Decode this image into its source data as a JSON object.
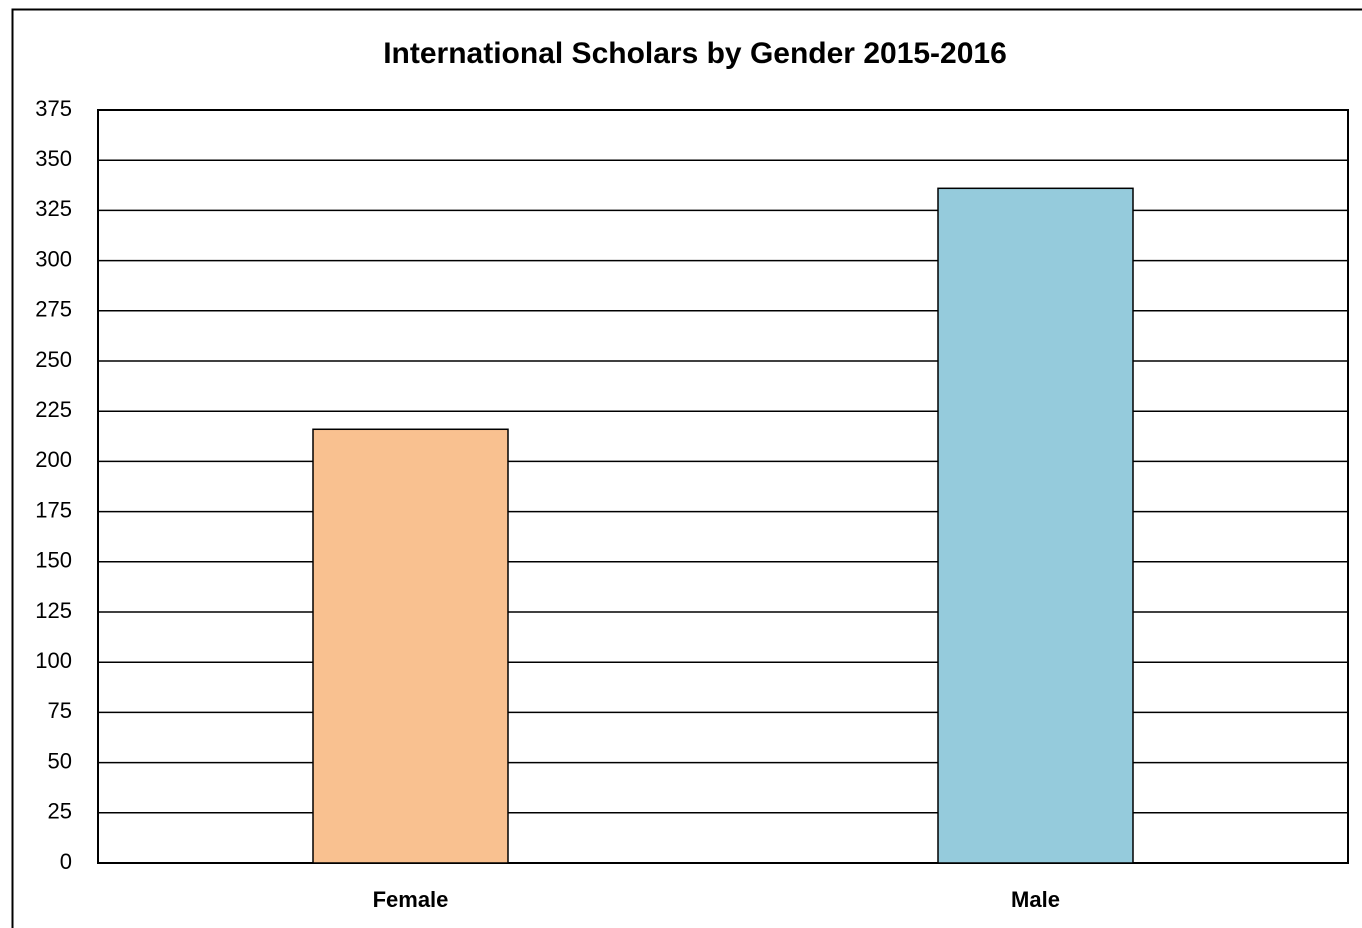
{
  "chart_data": {
    "type": "bar",
    "title": "International Scholars by Gender 2015-2016",
    "categories": [
      "Female",
      "Male"
    ],
    "values": [
      216,
      336
    ],
    "colors": [
      "#f9c190",
      "#95cbdc"
    ],
    "ylim": [
      0,
      375
    ],
    "yticks": [
      0,
      25,
      50,
      75,
      100,
      125,
      150,
      175,
      200,
      225,
      250,
      275,
      300,
      325,
      350,
      375
    ],
    "grid": true
  }
}
